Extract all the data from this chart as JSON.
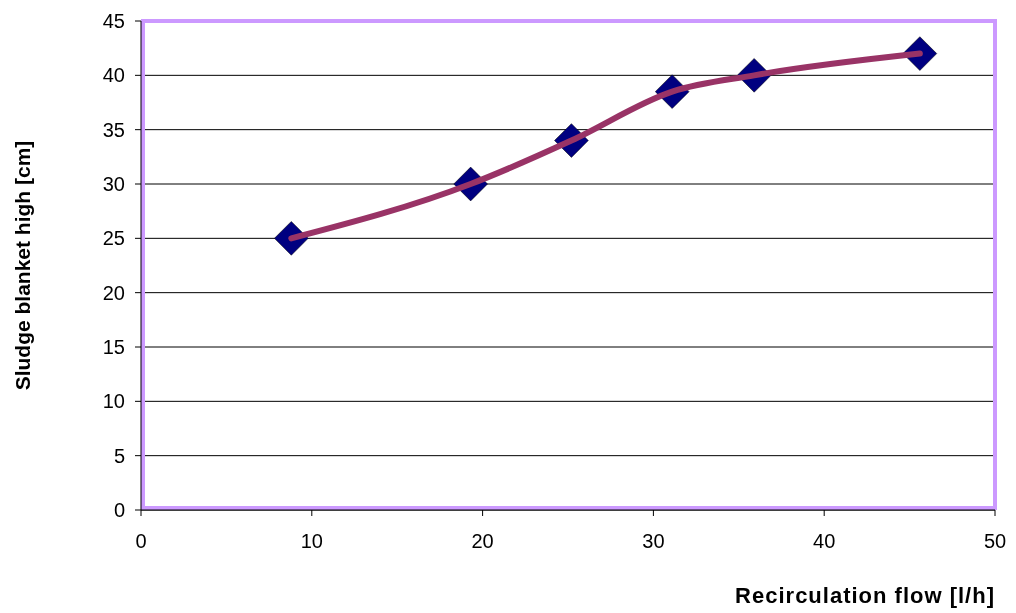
{
  "chart_data": {
    "type": "line",
    "xlabel": "Recirculation flow [l/h]",
    "ylabel": "Sludge blanket high [cm]",
    "x": [
      8.8,
      19.3,
      25.2,
      31.1,
      35.9,
      45.6
    ],
    "series": [
      {
        "color": "#993366",
        "values": [
          25,
          30,
          34,
          38.5,
          40,
          42
        ],
        "marker": "none"
      },
      {
        "type": "scatter",
        "color": "#000080",
        "values": [
          25,
          30,
          34,
          38.5,
          40,
          42
        ],
        "marker": "diamond"
      }
    ],
    "xlim": [
      0,
      50
    ],
    "xticks": [
      0,
      10,
      20,
      30,
      40,
      50
    ],
    "ylim": [
      0,
      45
    ],
    "yticks": [
      0,
      5,
      10,
      15,
      20,
      25,
      30,
      35,
      40,
      45
    ],
    "grid": "y"
  }
}
